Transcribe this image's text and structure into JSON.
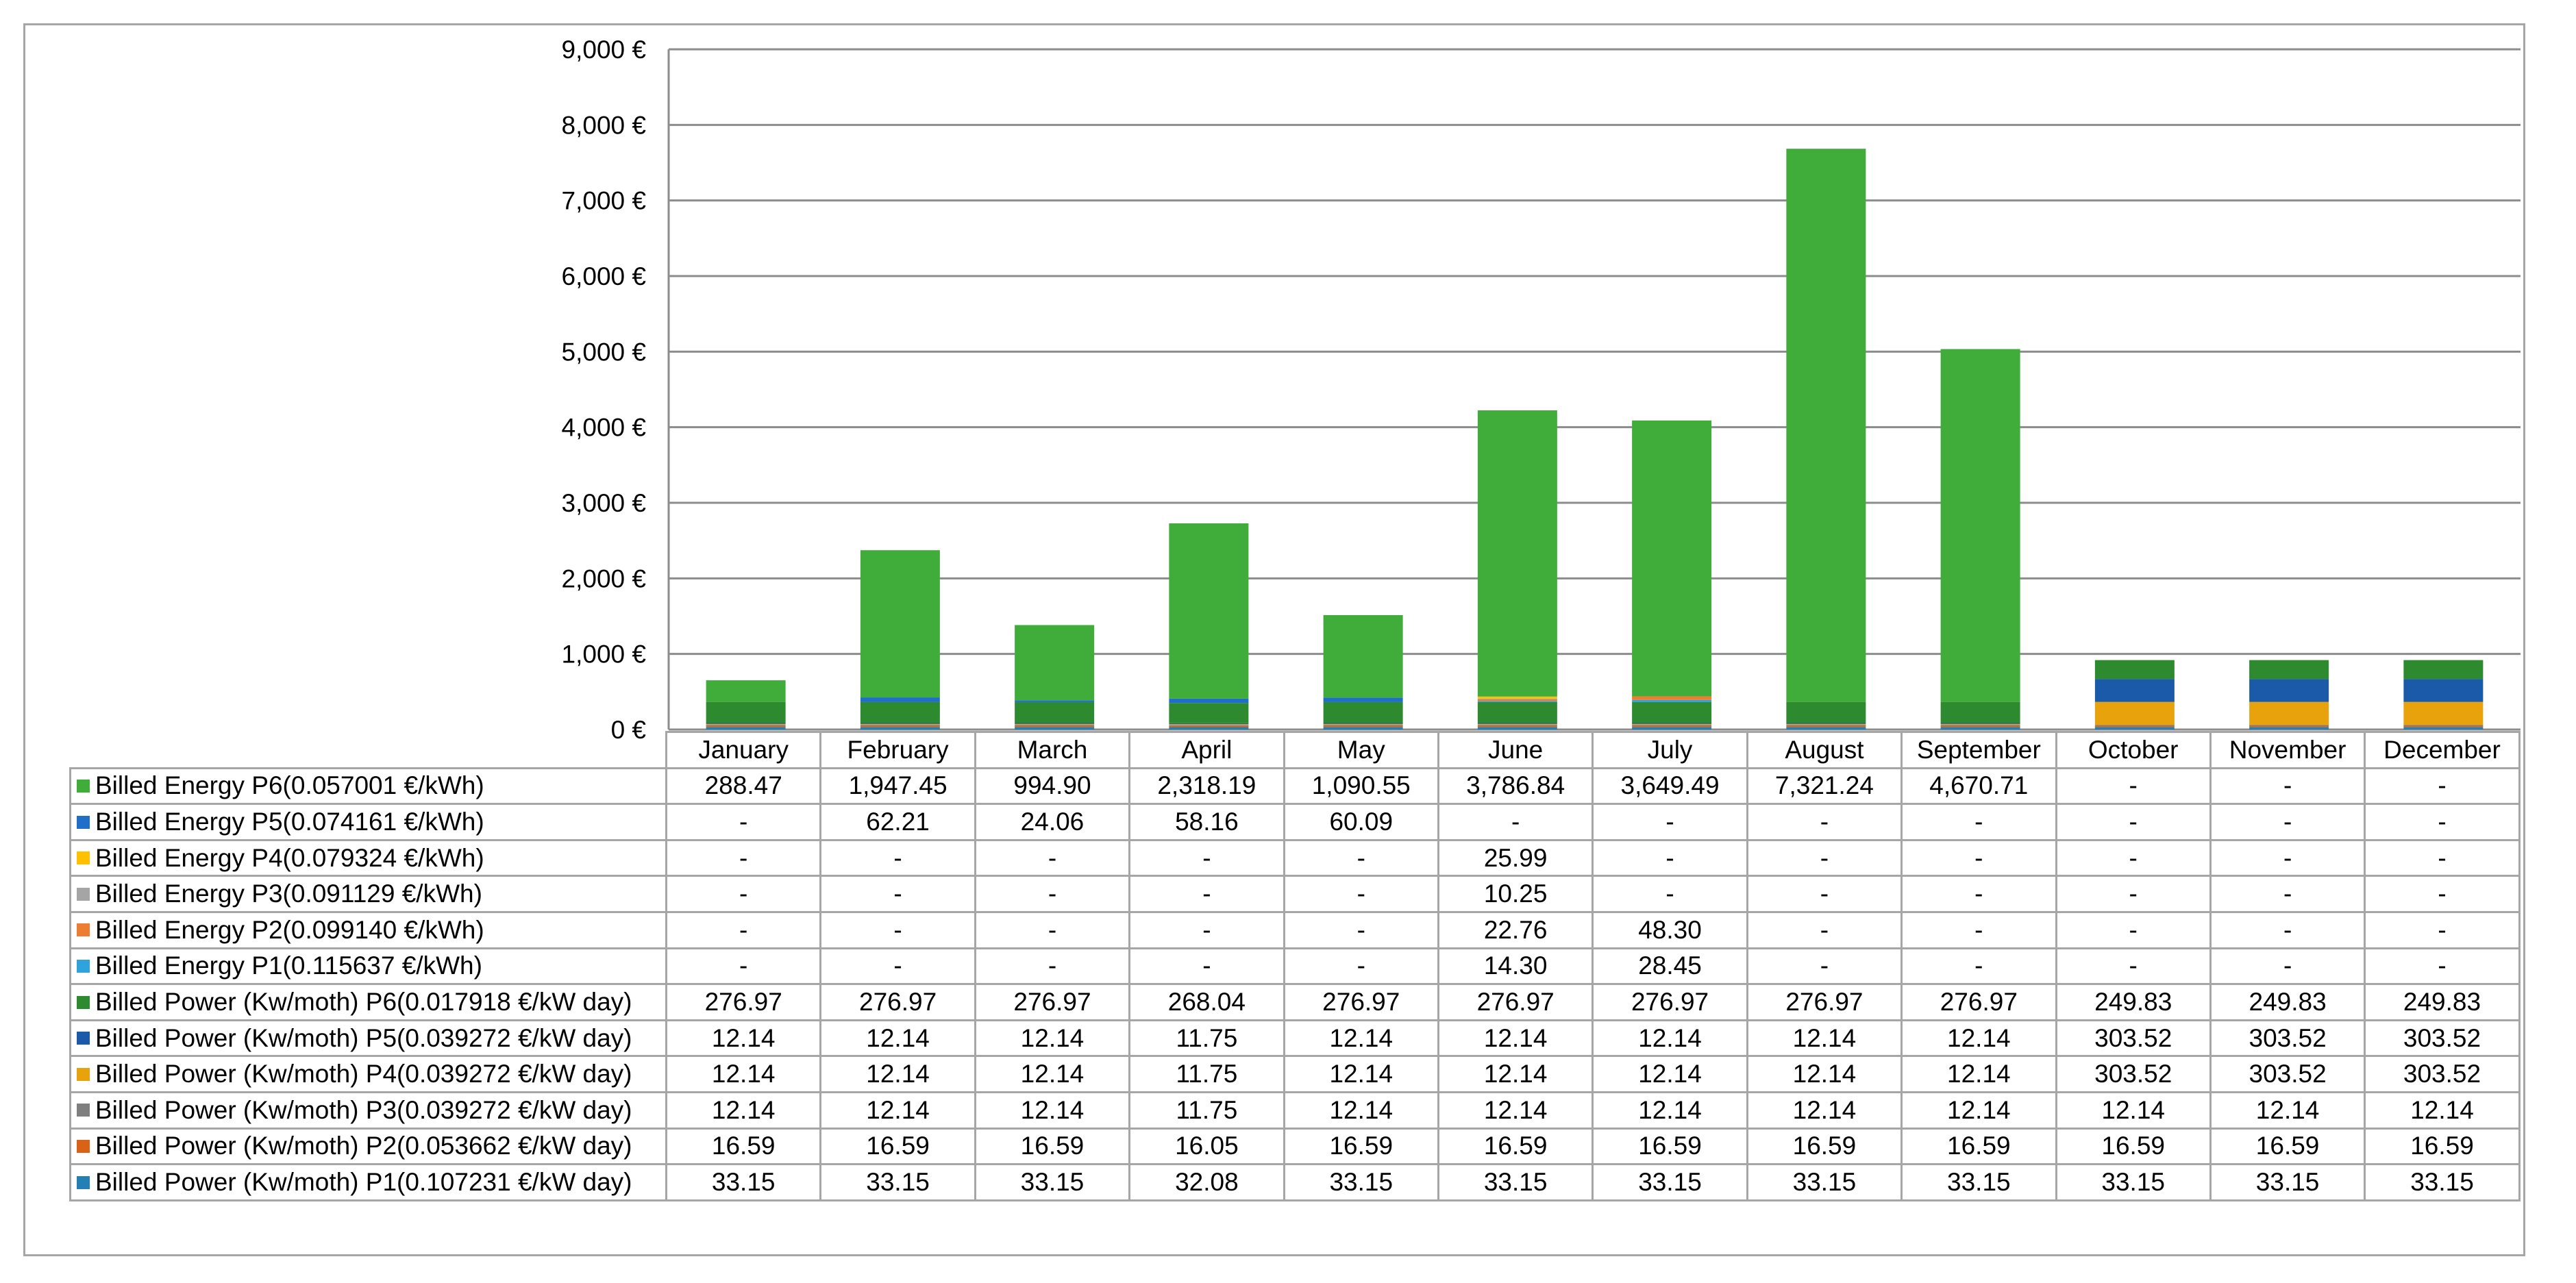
{
  "chart_data": {
    "type": "bar",
    "stacked": true,
    "categories": [
      "January",
      "February",
      "March",
      "April",
      "May",
      "June",
      "July",
      "August",
      "September",
      "October",
      "November",
      "December"
    ],
    "ylim": [
      0,
      9000
    ],
    "yticks": [
      0,
      1000,
      2000,
      3000,
      4000,
      5000,
      6000,
      7000,
      8000,
      9000
    ],
    "ytick_labels": [
      "0 €",
      "1,000 €",
      "2,000 €",
      "3,000 €",
      "4,000 €",
      "5,000 €",
      "6,000 €",
      "7,000 €",
      "8,000 €",
      "9,000 €"
    ],
    "grid": true,
    "legend": "data-table",
    "series": [
      {
        "name": "Billed Energy P6(0.057001 €/kWh)",
        "color": "#40ad3b",
        "values": [
          288.47,
          1947.45,
          994.9,
          2318.19,
          1090.55,
          3786.84,
          3649.49,
          7321.24,
          4670.71,
          null,
          null,
          null
        ],
        "labels": [
          "288.47",
          "1,947.45",
          "994.90",
          "2,318.19",
          "1,090.55",
          "3,786.84",
          "3,649.49",
          "7,321.24",
          "4,670.71",
          "-",
          "-",
          "-"
        ]
      },
      {
        "name": "Billed Energy P5(0.074161 €/kWh)",
        "color": "#1f6fc9",
        "values": [
          null,
          62.21,
          24.06,
          58.16,
          60.09,
          null,
          null,
          null,
          null,
          null,
          null,
          null
        ],
        "labels": [
          "-",
          "62.21",
          "24.06",
          "58.16",
          "60.09",
          "-",
          "-",
          "-",
          "-",
          "-",
          "-",
          "-"
        ]
      },
      {
        "name": "Billed Energy P4(0.079324 €/kWh)",
        "color": "#ffc000",
        "values": [
          null,
          null,
          null,
          null,
          null,
          25.99,
          null,
          null,
          null,
          null,
          null,
          null
        ],
        "labels": [
          "-",
          "-",
          "-",
          "-",
          "-",
          "25.99",
          "-",
          "-",
          "-",
          "-",
          "-",
          "-"
        ]
      },
      {
        "name": "Billed Energy P3(0.091129 €/kWh)",
        "color": "#a5a5a5",
        "values": [
          null,
          null,
          null,
          null,
          null,
          10.25,
          null,
          null,
          null,
          null,
          null,
          null
        ],
        "labels": [
          "-",
          "-",
          "-",
          "-",
          "-",
          "10.25",
          "-",
          "-",
          "-",
          "-",
          "-",
          "-"
        ]
      },
      {
        "name": "Billed Energy P2(0.099140 €/kWh)",
        "color": "#ed7d31",
        "values": [
          null,
          null,
          null,
          null,
          null,
          22.76,
          48.3,
          null,
          null,
          null,
          null,
          null
        ],
        "labels": [
          "-",
          "-",
          "-",
          "-",
          "-",
          "22.76",
          "48.30",
          "-",
          "-",
          "-",
          "-",
          "-"
        ]
      },
      {
        "name": "Billed Energy P1(0.115637 €/kWh)",
        "color": "#2fa4dc",
        "values": [
          null,
          null,
          null,
          null,
          null,
          14.3,
          28.45,
          null,
          null,
          null,
          null,
          null
        ],
        "labels": [
          "-",
          "-",
          "-",
          "-",
          "-",
          "14.30",
          "28.45",
          "-",
          "-",
          "-",
          "-",
          "-"
        ]
      },
      {
        "name": "Billed Power (Kw/moth) P6(0.017918 €/kW day)",
        "color": "#2d8a2f",
        "values": [
          276.97,
          276.97,
          276.97,
          268.04,
          276.97,
          276.97,
          276.97,
          276.97,
          276.97,
          249.83,
          249.83,
          249.83
        ],
        "labels": [
          "276.97",
          "276.97",
          "276.97",
          "268.04",
          "276.97",
          "276.97",
          "276.97",
          "276.97",
          "276.97",
          "249.83",
          "249.83",
          "249.83"
        ]
      },
      {
        "name": "Billed Power (Kw/moth) P5(0.039272 €/kW day)",
        "color": "#1a5aa8",
        "values": [
          12.14,
          12.14,
          12.14,
          11.75,
          12.14,
          12.14,
          12.14,
          12.14,
          12.14,
          303.52,
          303.52,
          303.52
        ],
        "labels": [
          "12.14",
          "12.14",
          "12.14",
          "11.75",
          "12.14",
          "12.14",
          "12.14",
          "12.14",
          "12.14",
          "303.52",
          "303.52",
          "303.52"
        ]
      },
      {
        "name": "Billed Power (Kw/moth) P4(0.039272 €/kW day)",
        "color": "#e8a20c",
        "values": [
          12.14,
          12.14,
          12.14,
          11.75,
          12.14,
          12.14,
          12.14,
          12.14,
          12.14,
          303.52,
          303.52,
          303.52
        ],
        "labels": [
          "12.14",
          "12.14",
          "12.14",
          "11.75",
          "12.14",
          "12.14",
          "12.14",
          "12.14",
          "12.14",
          "303.52",
          "303.52",
          "303.52"
        ]
      },
      {
        "name": "Billed Power (Kw/moth) P3(0.039272 €/kW day)",
        "color": "#7f7f7f",
        "values": [
          12.14,
          12.14,
          12.14,
          11.75,
          12.14,
          12.14,
          12.14,
          12.14,
          12.14,
          12.14,
          12.14,
          12.14
        ],
        "labels": [
          "12.14",
          "12.14",
          "12.14",
          "11.75",
          "12.14",
          "12.14",
          "12.14",
          "12.14",
          "12.14",
          "12.14",
          "12.14",
          "12.14"
        ]
      },
      {
        "name": "Billed Power (Kw/moth) P2(0.053662 €/kW day)",
        "color": "#d86216",
        "values": [
          16.59,
          16.59,
          16.59,
          16.05,
          16.59,
          16.59,
          16.59,
          16.59,
          16.59,
          16.59,
          16.59,
          16.59
        ],
        "labels": [
          "16.59",
          "16.59",
          "16.59",
          "16.05",
          "16.59",
          "16.59",
          "16.59",
          "16.59",
          "16.59",
          "16.59",
          "16.59",
          "16.59"
        ]
      },
      {
        "name": "Billed Power (Kw/moth) P1(0.107231 €/kW day)",
        "color": "#2480b4",
        "values": [
          33.15,
          33.15,
          33.15,
          32.08,
          33.15,
          33.15,
          33.15,
          33.15,
          33.15,
          33.15,
          33.15,
          33.15
        ],
        "labels": [
          "33.15",
          "33.15",
          "33.15",
          "32.08",
          "33.15",
          "33.15",
          "33.15",
          "33.15",
          "33.15",
          "33.15",
          "33.15",
          "33.15"
        ]
      }
    ]
  }
}
